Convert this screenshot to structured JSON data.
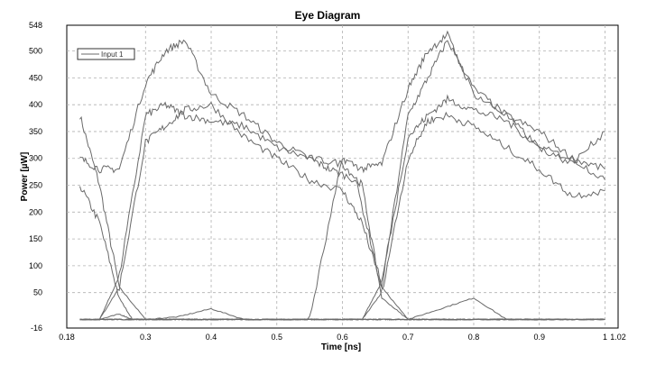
{
  "chart_data": {
    "type": "line",
    "title": "Eye Diagram",
    "xlabel": "Time [ns]",
    "ylabel": "Power [µW]",
    "xlim": [
      0.18,
      1.02
    ],
    "ylim": [
      -16,
      548
    ],
    "x_ticks": [
      0.18,
      0.3,
      0.4,
      0.5,
      0.6,
      0.7,
      0.8,
      0.9,
      1,
      1.02
    ],
    "x_tick_labels": [
      "0.18",
      "0.3",
      "0.4",
      "0.5",
      "0.6",
      "0.7",
      "0.8",
      "0.9",
      "1",
      "1.02"
    ],
    "y_ticks": [
      -16,
      50,
      100,
      150,
      200,
      250,
      300,
      350,
      400,
      450,
      500,
      548
    ],
    "y_tick_labels": [
      "-16",
      "50",
      "100",
      "150",
      "200",
      "250",
      "300",
      "350",
      "400",
      "450",
      "500",
      "548"
    ],
    "grid": true,
    "legend_position": "top-left",
    "series": [
      {
        "name": "Input 1",
        "color": "#6a6a6a",
        "traces": [
          {
            "x": [
              0.2,
              0.23,
              0.26,
              0.3,
              0.33,
              0.36,
              0.4,
              0.45,
              0.5,
              0.55,
              0.6,
              0.63,
              0.66,
              0.7,
              0.73,
              0.76,
              0.8,
              0.85,
              0.9,
              0.95,
              1.0
            ],
            "y": [
              380,
              250,
              60,
              0,
              0,
              0,
              0,
              0,
              0,
              0,
              0,
              0,
              0,
              0,
              0,
              0,
              0,
              0,
              0,
              0,
              0
            ]
          },
          {
            "x": [
              0.2,
              0.23,
              0.26,
              0.28,
              0.3,
              0.33,
              0.35,
              0.37,
              0.4,
              0.45,
              0.5,
              0.55,
              0.6,
              0.63,
              0.66,
              0.7,
              0.73,
              0.76,
              0.8,
              0.85,
              0.9,
              0.95,
              1.0
            ],
            "y": [
              250,
              180,
              40,
              0,
              0,
              0,
              0,
              0,
              0,
              0,
              0,
              0,
              0,
              0,
              0,
              0,
              0,
              0,
              0,
              0,
              0,
              0,
              0
            ]
          },
          {
            "x": [
              0.2,
              0.23,
              0.26,
              0.28,
              0.3,
              0.35,
              0.4,
              0.45,
              0.5,
              0.55,
              0.6,
              0.63,
              0.66,
              0.68,
              0.7,
              0.75,
              0.8,
              0.85,
              0.9,
              0.95,
              1.0
            ],
            "y": [
              0,
              0,
              10,
              0,
              0,
              5,
              20,
              0,
              0,
              0,
              0,
              0,
              0,
              0,
              0,
              20,
              40,
              0,
              0,
              0,
              0
            ]
          },
          {
            "x": [
              0.2,
              0.23,
              0.26,
              0.3,
              0.33,
              0.36,
              0.4,
              0.45,
              0.5,
              0.55,
              0.58,
              0.62,
              0.66,
              0.7,
              0.73,
              0.76,
              0.8,
              0.85,
              0.9,
              0.95,
              1.0
            ],
            "y": [
              300,
              280,
              280,
              440,
              500,
              520,
              420,
              380,
              330,
              300,
              280,
              260,
              60,
              0,
              0,
              0,
              0,
              0,
              0,
              0,
              0
            ]
          },
          {
            "x": [
              0.2,
              0.23,
              0.26,
              0.3,
              0.33,
              0.36,
              0.4,
              0.45,
              0.5,
              0.55,
              0.6,
              0.63,
              0.66,
              0.7,
              0.73,
              0.76,
              0.8,
              0.85,
              0.9,
              0.95,
              1.0
            ],
            "y": [
              0,
              0,
              80,
              380,
              400,
              380,
              370,
              360,
              320,
              300,
              290,
              250,
              40,
              0,
              0,
              0,
              0,
              0,
              0,
              0,
              0
            ]
          },
          {
            "x": [
              0.2,
              0.23,
              0.26,
              0.3,
              0.33,
              0.36,
              0.4,
              0.45,
              0.5,
              0.55,
              0.6,
              0.63,
              0.66,
              0.7,
              0.73,
              0.76,
              0.8,
              0.85,
              0.9,
              0.95,
              1.0
            ],
            "y": [
              0,
              0,
              60,
              330,
              360,
              390,
              400,
              340,
              300,
              260,
              240,
              180,
              60,
              380,
              450,
              520,
              430,
              380,
              350,
              300,
              280
            ]
          },
          {
            "x": [
              0.2,
              0.23,
              0.26,
              0.3,
              0.33,
              0.36,
              0.4,
              0.45,
              0.5,
              0.55,
              0.6,
              0.63,
              0.66,
              0.7,
              0.73,
              0.76,
              0.8,
              0.85,
              0.9,
              0.95,
              1.0
            ],
            "y": [
              0,
              0,
              0,
              0,
              0,
              0,
              0,
              0,
              0,
              0,
              300,
              280,
              290,
              430,
              500,
              530,
              420,
              380,
              320,
              300,
              260
            ]
          },
          {
            "x": [
              0.2,
              0.23,
              0.26,
              0.3,
              0.33,
              0.36,
              0.4,
              0.45,
              0.5,
              0.55,
              0.6,
              0.63,
              0.66,
              0.7,
              0.73,
              0.76,
              0.8,
              0.85,
              0.9,
              0.95,
              1.0
            ],
            "y": [
              0,
              0,
              0,
              0,
              0,
              0,
              0,
              0,
              0,
              0,
              0,
              0,
              70,
              340,
              380,
              410,
              390,
              370,
              320,
              290,
              350
            ]
          },
          {
            "x": [
              0.2,
              0.23,
              0.26,
              0.3,
              0.33,
              0.36,
              0.4,
              0.45,
              0.5,
              0.55,
              0.6,
              0.63,
              0.66,
              0.7,
              0.73,
              0.76,
              0.8,
              0.85,
              0.9,
              0.95,
              1.0
            ],
            "y": [
              0,
              0,
              0,
              0,
              0,
              0,
              0,
              0,
              0,
              0,
              0,
              0,
              50,
              300,
              370,
              380,
              360,
              320,
              280,
              230,
              240
            ]
          }
        ]
      }
    ],
    "legend_label": "Input 1"
  }
}
